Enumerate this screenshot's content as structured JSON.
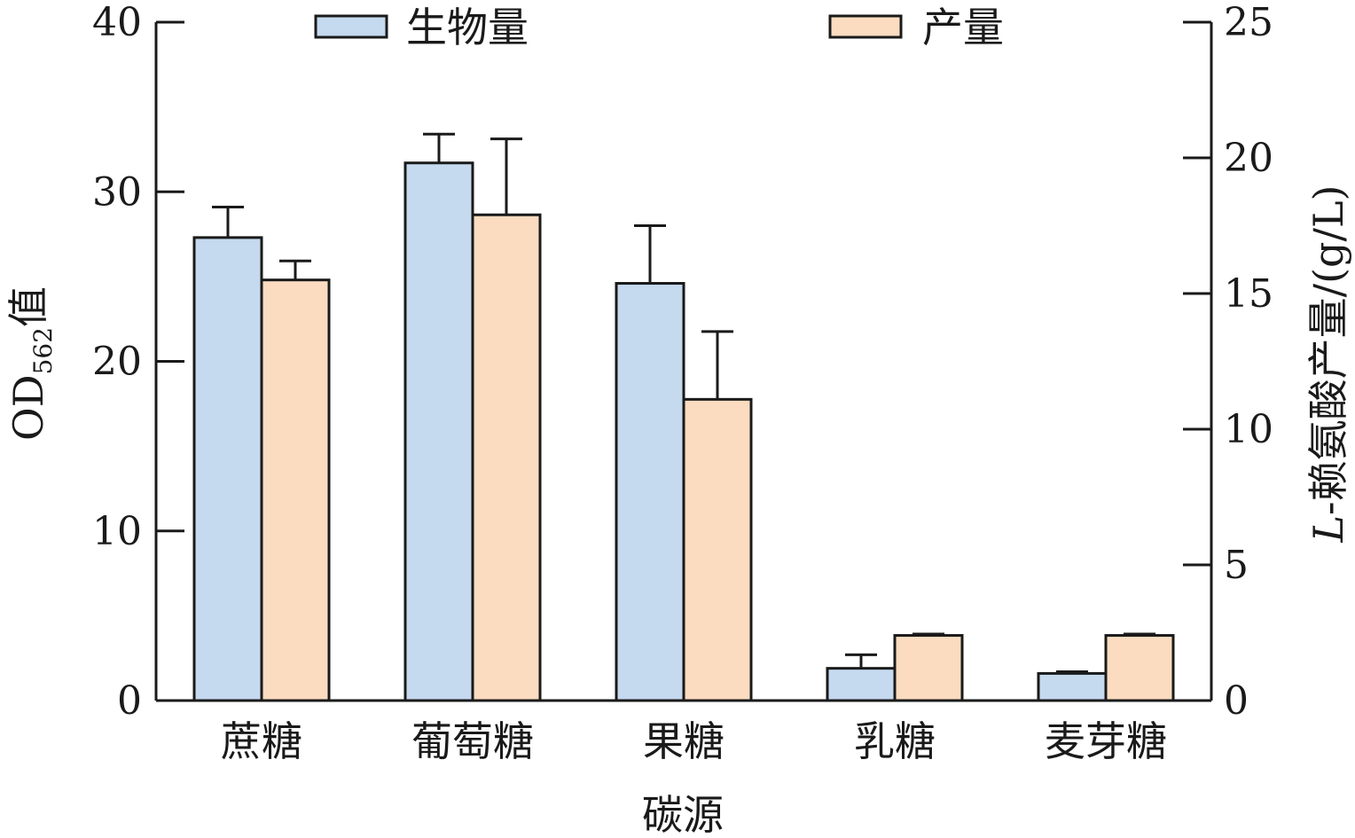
{
  "chart_data": {
    "type": "bar",
    "categories": [
      "蔗糖",
      "葡萄糖",
      "果糖",
      "乳糖",
      "麦芽糖"
    ],
    "series": [
      {
        "name": "生物量",
        "axis": "left",
        "color": "#c5d9ef",
        "values": [
          27.3,
          31.7,
          24.6,
          1.9,
          1.6
        ],
        "errors": [
          1.8,
          1.7,
          3.4,
          0.8,
          0.1
        ]
      },
      {
        "name": "产量",
        "axis": "right",
        "color": "#fbdcc0",
        "values": [
          15.5,
          17.9,
          11.1,
          2.4,
          2.4
        ],
        "errors": [
          0.7,
          2.8,
          2.5,
          0.05,
          0.05
        ]
      }
    ],
    "xlabel": "碳源",
    "ylabel_left": {
      "main": "OD",
      "sub": "562",
      "suffix": "值"
    },
    "ylabel_right": {
      "italic": "L",
      "rest": "-赖氨酸产量/(g/L)"
    },
    "ylim_left": [
      0,
      40
    ],
    "ylim_right": [
      0,
      25
    ],
    "yticks_left": [
      "0",
      "10",
      "20",
      "30",
      "40"
    ],
    "yticks_right": [
      "0",
      "5",
      "10",
      "15",
      "20",
      "25"
    ],
    "grid": false,
    "legend": "top"
  }
}
